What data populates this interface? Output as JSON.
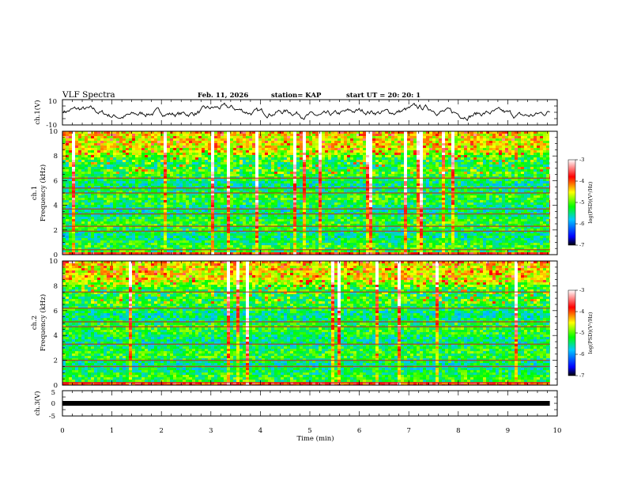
{
  "header": {
    "title": "VLF Spectra",
    "date": "Feb. 11, 2026",
    "station": "station= KAP",
    "start_ut": "start  UT =   20: 20: 1"
  },
  "chart_data": [
    {
      "type": "line",
      "name": "ch1-waveform",
      "ylabel": "ch.1(V)",
      "yticks": [
        "10",
        "-10"
      ],
      "ylim": [
        -10,
        10
      ],
      "xlim": [
        0,
        9.85
      ],
      "trace_color": "#000000"
    },
    {
      "type": "heatmap",
      "name": "ch1-spectrogram",
      "ylabel": "ch.1",
      "ylabel2": "Frequency  (kHz)",
      "yticks": [
        "0",
        "2",
        "4",
        "6",
        "8",
        "10"
      ],
      "ylim_khz": [
        0,
        10
      ],
      "xlim_min": [
        0,
        9.85
      ],
      "line_frequencies_khz": [
        0.4,
        1.9,
        2.3,
        3.3,
        3.7,
        5.0,
        5.4,
        6.2
      ],
      "colorbar": {
        "label": "log(PSD)(V²/Hz)",
        "ticks": [
          "-3",
          "-4",
          "-5",
          "-6",
          "-7"
        ],
        "range": [
          -7,
          -3
        ]
      }
    },
    {
      "type": "heatmap",
      "name": "ch2-spectrogram",
      "ylabel": "ch.2",
      "ylabel2": "Frequency  (kHz)",
      "yticks": [
        "0",
        "2",
        "4",
        "6",
        "8",
        "10"
      ],
      "ylim_khz": [
        0,
        10
      ],
      "xlim_min": [
        0,
        9.85
      ],
      "line_frequencies_khz": [
        0.2,
        1.5,
        2.0,
        3.3,
        4.7,
        5.1,
        6.2,
        7.5
      ],
      "colorbar": {
        "label": "log(PSD)(V²/Hz)",
        "ticks": [
          "-3",
          "-4",
          "-5",
          "-6",
          "-7"
        ],
        "range": [
          -7,
          -3
        ]
      }
    },
    {
      "type": "line",
      "name": "ch3-waveform",
      "ylabel": "ch.3(V)",
      "yticks": [
        "5",
        "0",
        "-5"
      ],
      "ylim": [
        -5,
        5
      ],
      "xlim": [
        0,
        9.85
      ],
      "level_v": 0,
      "trace_color": "#000000"
    }
  ],
  "xaxis": {
    "label": "Time  (min)",
    "ticks": [
      "0",
      "1",
      "2",
      "3",
      "4",
      "5",
      "6",
      "7",
      "8",
      "9",
      "10"
    ],
    "range": [
      0,
      10
    ]
  },
  "colors": {
    "scale": [
      "#000000",
      "#0000ff",
      "#00ffff",
      "#00ff00",
      "#ffff00",
      "#ff0000",
      "#ffffff"
    ]
  }
}
